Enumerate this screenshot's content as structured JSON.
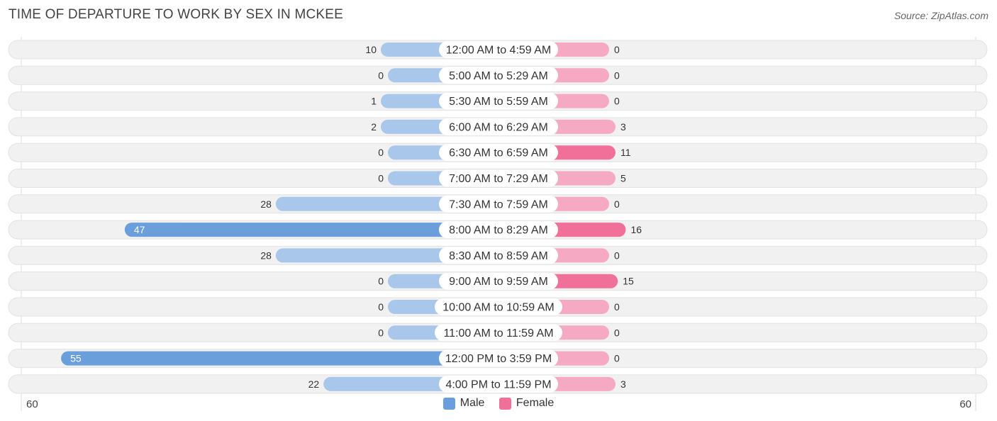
{
  "header": {
    "title": "TIME OF DEPARTURE TO WORK BY SEX IN MCKEE",
    "source": "Source: ZipAtlas.com"
  },
  "axis": {
    "left_label": "60",
    "right_label": "60"
  },
  "legend": {
    "male": "Male",
    "female": "Female"
  },
  "colors": {
    "male_strong": "#6a9fdc",
    "male_light": "#a9c7ea",
    "female_strong": "#f07099",
    "female_light": "#f6a9c3",
    "row_bg": "#f1f1f1"
  },
  "chart_data": {
    "type": "bar",
    "orientation": "horizontal-diverging",
    "xlim": [
      -60,
      60
    ],
    "categories": [
      "12:00 AM to 4:59 AM",
      "5:00 AM to 5:29 AM",
      "5:30 AM to 5:59 AM",
      "6:00 AM to 6:29 AM",
      "6:30 AM to 6:59 AM",
      "7:00 AM to 7:29 AM",
      "7:30 AM to 7:59 AM",
      "8:00 AM to 8:29 AM",
      "8:30 AM to 8:59 AM",
      "9:00 AM to 9:59 AM",
      "10:00 AM to 10:59 AM",
      "11:00 AM to 11:59 AM",
      "12:00 PM to 3:59 PM",
      "4:00 PM to 11:59 PM"
    ],
    "series": [
      {
        "name": "Male",
        "values": [
          10,
          0,
          1,
          2,
          0,
          0,
          28,
          47,
          28,
          0,
          0,
          0,
          55,
          22
        ]
      },
      {
        "name": "Female",
        "values": [
          0,
          0,
          0,
          3,
          11,
          5,
          0,
          16,
          0,
          15,
          0,
          0,
          0,
          3
        ]
      }
    ],
    "legend_position": "bottom-center"
  }
}
